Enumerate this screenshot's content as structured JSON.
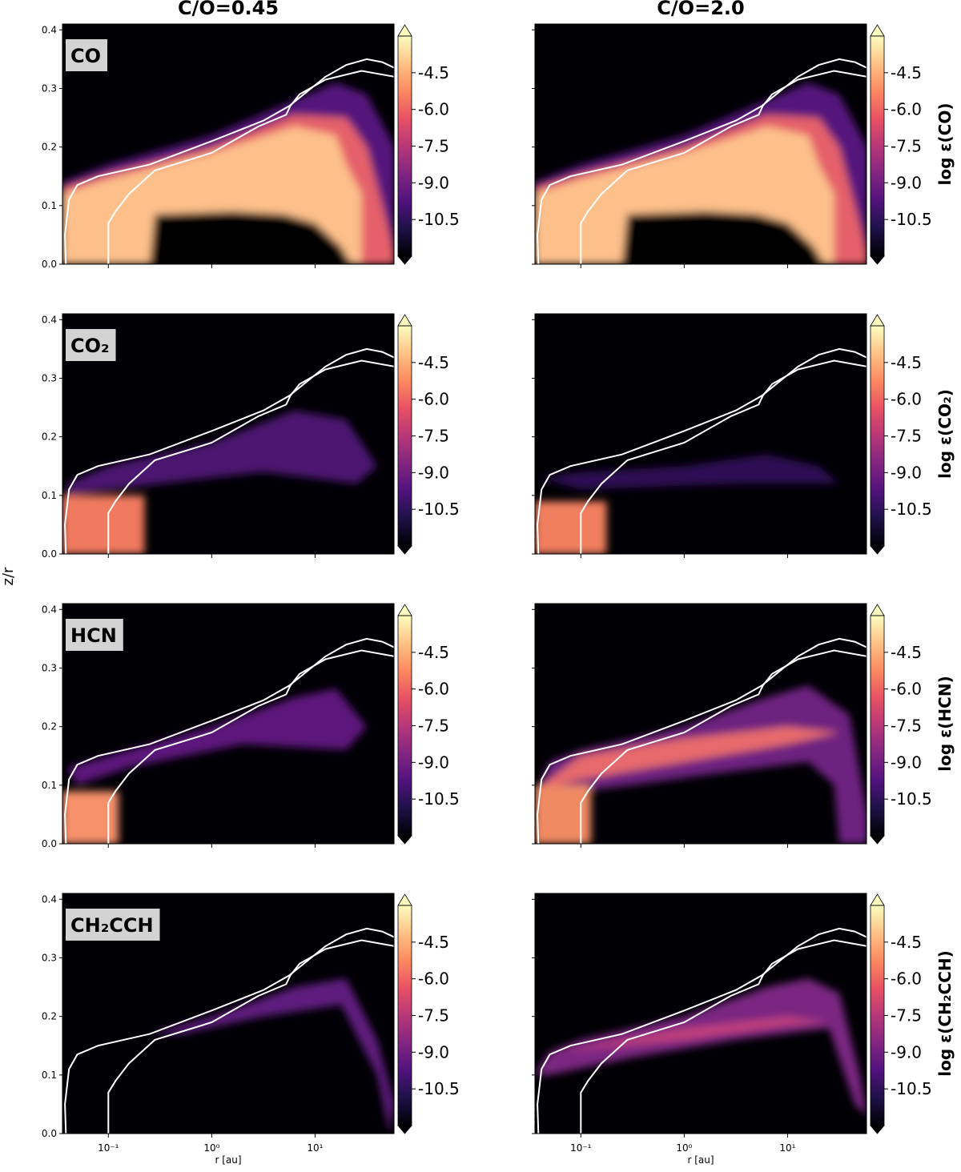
{
  "figure": {
    "columns": [
      "C/O=0.45",
      "C/O=2.0"
    ],
    "y_label": "z/r",
    "x_label": "r [au]",
    "xlim": [
      0.036,
      58
    ],
    "xscale": "log",
    "xticks": [
      {
        "value": 0.1,
        "label": "10⁻¹"
      },
      {
        "value": 1,
        "label": "10⁰"
      },
      {
        "value": 10,
        "label": "10¹"
      }
    ],
    "ylim": [
      0,
      0.41
    ],
    "yticks": [
      {
        "value": 0,
        "label": "0.0"
      },
      0.1,
      0.2,
      0.3,
      0.4
    ],
    "clim": [
      -12,
      -3
    ],
    "cticks": [
      -4.5,
      {
        "value": -6,
        "label": "-6.0"
      },
      -7.5,
      {
        "value": -9,
        "label": "-9.0"
      },
      -10.5
    ],
    "colormap": [
      "#000004",
      "#1d1147",
      "#51127c",
      "#822681",
      "#b73779",
      "#e75263",
      "#fc8961",
      "#fec287",
      "#fcfdbf"
    ],
    "rows": [
      {
        "species": "CO",
        "colorbar_label": "log ε(CO)"
      },
      {
        "species": "CO₂",
        "colorbar_label": "log ε(CO₂)"
      },
      {
        "species": "HCN",
        "colorbar_label": "log ε(HCN)"
      },
      {
        "species": "CH₂CCH",
        "colorbar_label": "log ε(CH₂CCH)"
      }
    ]
  }
}
